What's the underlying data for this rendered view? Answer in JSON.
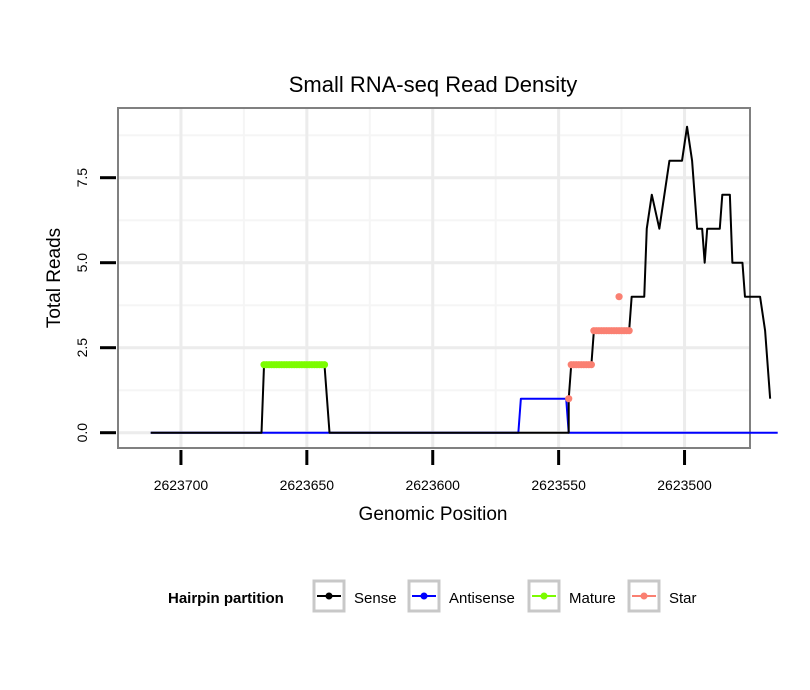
{
  "chart_data": {
    "type": "line",
    "title": "Small RNA-seq Read Density",
    "xlabel": "Genomic Position",
    "ylabel": "Total Reads",
    "x_reversed": true,
    "xlim": [
      2623725,
      2623474
    ],
    "ylim": [
      -0.45,
      9.55
    ],
    "x_ticks": [
      2623700,
      2623650,
      2623600,
      2623550,
      2623500
    ],
    "x_tick_labels": [
      "2623700",
      "2623650",
      "2623600",
      "2623550",
      "2623500"
    ],
    "y_ticks": [
      0,
      2.5,
      5,
      7.5
    ],
    "y_tick_labels": [
      "0.0",
      "2.5",
      "5.0",
      "7.5"
    ],
    "grid": true,
    "legend": {
      "title": "Hairpin partition",
      "position": "bottom",
      "entries": [
        {
          "name": "Sense",
          "color": "#000000"
        },
        {
          "name": "Antisense",
          "color": "#0000ff"
        },
        {
          "name": "Mature",
          "color": "#7cfc00"
        },
        {
          "name": "Star",
          "color": "#fa8072"
        }
      ]
    },
    "series": [
      {
        "name": "Sense",
        "color": "#000000",
        "points": [
          [
            2623712,
            0
          ],
          [
            2623668,
            0
          ],
          [
            2623667,
            2
          ],
          [
            2623643,
            2
          ],
          [
            2623642,
            1
          ],
          [
            2623641,
            0
          ],
          [
            2623546,
            0
          ],
          [
            2623546,
            1
          ],
          [
            2623545,
            2
          ],
          [
            2623537,
            2
          ],
          [
            2623536,
            3
          ],
          [
            2623522,
            3
          ],
          [
            2623521,
            4
          ],
          [
            2623516,
            4
          ],
          [
            2623515,
            6
          ],
          [
            2623513,
            7
          ],
          [
            2623510,
            6
          ],
          [
            2623508,
            7
          ],
          [
            2623506,
            8
          ],
          [
            2623501,
            8
          ],
          [
            2623499,
            9
          ],
          [
            2623497,
            8
          ],
          [
            2623495,
            6
          ],
          [
            2623493,
            6
          ],
          [
            2623492,
            5
          ],
          [
            2623491,
            6
          ],
          [
            2623486,
            6
          ],
          [
            2623485,
            7
          ],
          [
            2623482,
            7
          ],
          [
            2623481,
            5
          ],
          [
            2623477,
            5
          ],
          [
            2623476,
            4
          ],
          [
            2623470,
            4
          ],
          [
            2623468,
            3
          ],
          [
            2623466,
            1
          ]
        ]
      },
      {
        "name": "Antisense",
        "color": "#0000ff",
        "points": [
          [
            2623712,
            0
          ],
          [
            2623566,
            0
          ],
          [
            2623565,
            1
          ],
          [
            2623547,
            1
          ],
          [
            2623546,
            0
          ],
          [
            2623463,
            0
          ]
        ]
      },
      {
        "name": "Mature",
        "color": "#7cfc00",
        "points": [
          [
            2623667,
            2
          ],
          [
            2623666,
            2
          ],
          [
            2623665,
            2
          ],
          [
            2623664,
            2
          ],
          [
            2623663,
            2
          ],
          [
            2623662,
            2
          ],
          [
            2623661,
            2
          ],
          [
            2623660,
            2
          ],
          [
            2623659,
            2
          ],
          [
            2623658,
            2
          ],
          [
            2623657,
            2
          ],
          [
            2623656,
            2
          ],
          [
            2623655,
            2
          ],
          [
            2623654,
            2
          ],
          [
            2623653,
            2
          ],
          [
            2623652,
            2
          ],
          [
            2623651,
            2
          ],
          [
            2623650,
            2
          ],
          [
            2623649,
            2
          ],
          [
            2623648,
            2
          ],
          [
            2623647,
            2
          ],
          [
            2623646,
            2
          ],
          [
            2623645,
            2
          ],
          [
            2623644,
            2
          ],
          [
            2623643,
            2
          ]
        ]
      },
      {
        "name": "Star",
        "color": "#fa8072",
        "points": [
          [
            2623546,
            1
          ],
          [
            2623545,
            2
          ],
          [
            2623544,
            2
          ],
          [
            2623543,
            2
          ],
          [
            2623542,
            2
          ],
          [
            2623541,
            2
          ],
          [
            2623540,
            2
          ],
          [
            2623539,
            2
          ],
          [
            2623538,
            2
          ],
          [
            2623537,
            2
          ],
          [
            2623536,
            3
          ],
          [
            2623535,
            3
          ],
          [
            2623534,
            3
          ],
          [
            2623533,
            3
          ],
          [
            2623532,
            3
          ],
          [
            2623531,
            3
          ],
          [
            2623530,
            3
          ],
          [
            2623529,
            3
          ],
          [
            2623528,
            3
          ],
          [
            2623527,
            3
          ],
          [
            2623526,
            3
          ],
          [
            2623525,
            3
          ],
          [
            2623524,
            3
          ],
          [
            2623523,
            3
          ],
          [
            2623522,
            3
          ],
          [
            2623526,
            4
          ]
        ]
      }
    ]
  }
}
